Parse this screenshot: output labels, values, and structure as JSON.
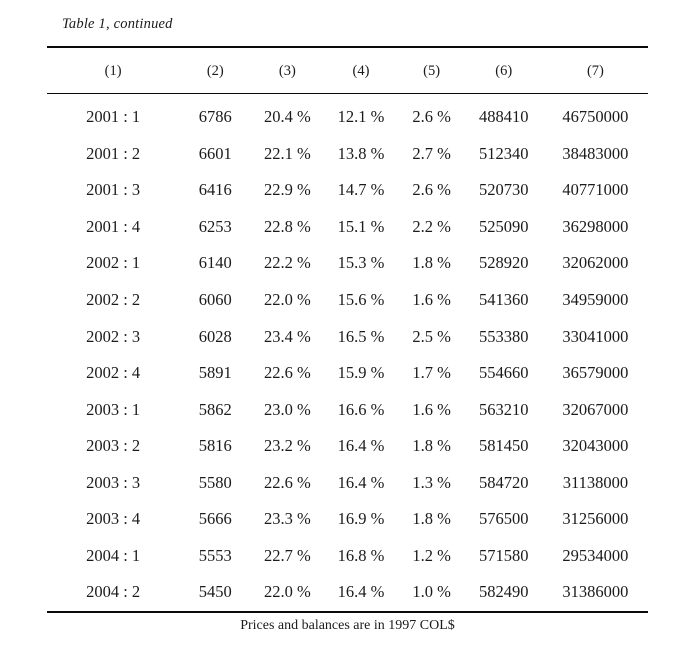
{
  "table": {
    "caption": "Table 1, continued",
    "columns": [
      "(1)",
      "(2)",
      "(3)",
      "(4)",
      "(5)",
      "(6)",
      "(7)"
    ],
    "rows": [
      [
        "2001 : 1",
        "6786",
        "20.4 %",
        "12.1 %",
        "2.6 %",
        "488410",
        "46750000"
      ],
      [
        "2001 : 2",
        "6601",
        "22.1 %",
        "13.8 %",
        "2.7 %",
        "512340",
        "38483000"
      ],
      [
        "2001 : 3",
        "6416",
        "22.9 %",
        "14.7 %",
        "2.6 %",
        "520730",
        "40771000"
      ],
      [
        "2001 : 4",
        "6253",
        "22.8 %",
        "15.1 %",
        "2.2 %",
        "525090",
        "36298000"
      ],
      [
        "2002 : 1",
        "6140",
        "22.2 %",
        "15.3 %",
        "1.8 %",
        "528920",
        "32062000"
      ],
      [
        "2002 : 2",
        "6060",
        "22.0 %",
        "15.6 %",
        "1.6 %",
        "541360",
        "34959000"
      ],
      [
        "2002 : 3",
        "6028",
        "23.4 %",
        "16.5 %",
        "2.5 %",
        "553380",
        "33041000"
      ],
      [
        "2002 : 4",
        "5891",
        "22.6 %",
        "15.9 %",
        "1.7 %",
        "554660",
        "36579000"
      ],
      [
        "2003 : 1",
        "5862",
        "23.0 %",
        "16.6 %",
        "1.6 %",
        "563210",
        "32067000"
      ],
      [
        "2003 : 2",
        "5816",
        "23.2 %",
        "16.4 %",
        "1.8 %",
        "581450",
        "32043000"
      ],
      [
        "2003 : 3",
        "5580",
        "22.6 %",
        "16.4 %",
        "1.3 %",
        "584720",
        "31138000"
      ],
      [
        "2003 : 4",
        "5666",
        "23.3 %",
        "16.9 %",
        "1.8 %",
        "576500",
        "31256000"
      ],
      [
        "2004 : 1",
        "5553",
        "22.7 %",
        "16.8 %",
        "1.2 %",
        "571580",
        "29534000"
      ],
      [
        "2004 : 2",
        "5450",
        "22.0 %",
        "16.4 %",
        "1.0 %",
        "582490",
        "31386000"
      ]
    ],
    "footnote": "Prices and balances are in 1997 COL$"
  }
}
